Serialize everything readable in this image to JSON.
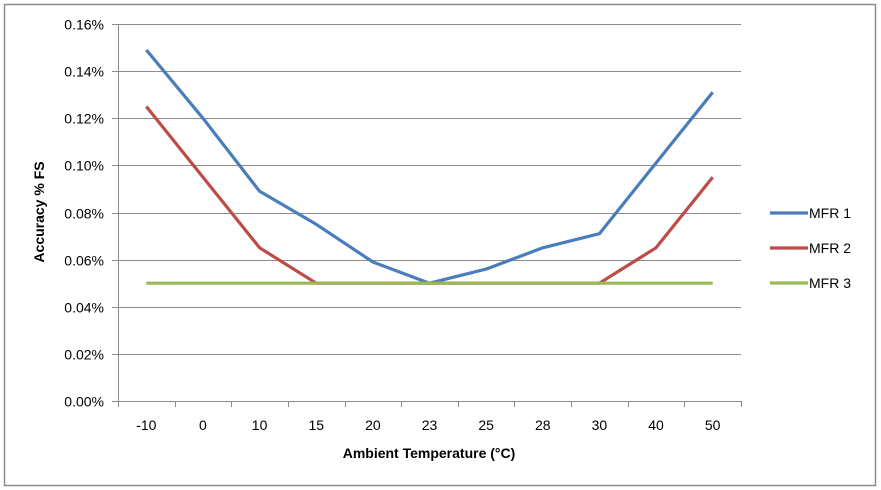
{
  "chart_data": {
    "type": "line",
    "title": "",
    "xlabel": "Ambient Temperature (°C)",
    "ylabel": "Accuracy % FS",
    "categories": [
      "-10",
      "0",
      "10",
      "15",
      "20",
      "23",
      "25",
      "28",
      "30",
      "40",
      "50"
    ],
    "ylim": [
      0,
      0.16
    ],
    "yticks": [
      0,
      0.02,
      0.04,
      0.06,
      0.08,
      0.1,
      0.12,
      0.14,
      0.16
    ],
    "ytick_labels": [
      "0.00%",
      "0.02%",
      "0.04%",
      "0.06%",
      "0.08%",
      "0.10%",
      "0.12%",
      "0.14%",
      "0.16%"
    ],
    "grid": true,
    "legend_position": "right",
    "series": [
      {
        "name": "MFR 1",
        "color": "#4a7ebb",
        "values": [
          0.149,
          0.12,
          0.089,
          0.075,
          0.059,
          0.05,
          0.056,
          0.065,
          0.071,
          0.101,
          0.131
        ]
      },
      {
        "name": "MFR 2",
        "color": "#be4b48",
        "values": [
          0.125,
          0.095,
          0.065,
          0.05,
          0.05,
          0.05,
          0.05,
          0.05,
          0.05,
          0.065,
          0.095
        ]
      },
      {
        "name": "MFR 3",
        "color": "#98b954",
        "values": [
          0.05,
          0.05,
          0.05,
          0.05,
          0.05,
          0.05,
          0.05,
          0.05,
          0.05,
          0.05,
          0.05
        ]
      }
    ]
  }
}
